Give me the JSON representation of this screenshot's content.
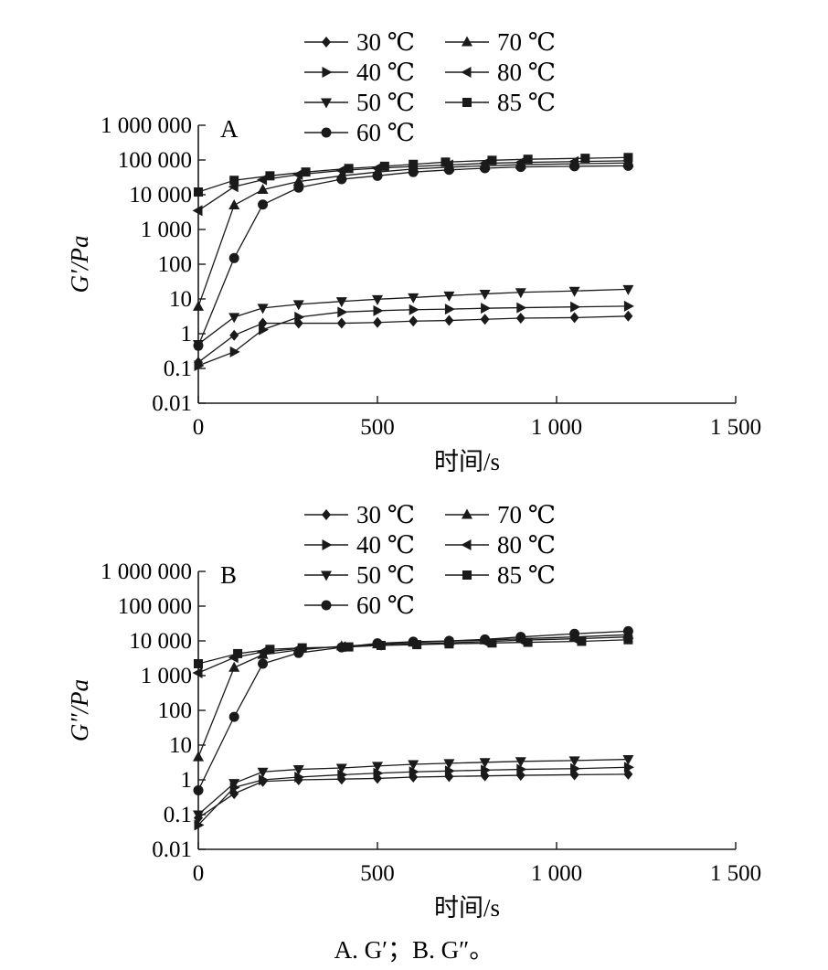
{
  "caption": "A. G′；B. G″。",
  "chart_data": [
    {
      "panel": "A",
      "type": "line",
      "ylabel": "G′/Pa",
      "xlabel": "时间/s",
      "y_scale": "log",
      "xlim": [
        0,
        1500
      ],
      "ylim": [
        0.01,
        1000000
      ],
      "x_ticks": [
        "0",
        "500",
        "1 000",
        "1 500"
      ],
      "y_ticks": [
        "0.01",
        "0.1",
        "1",
        "10",
        "100",
        "1 000",
        "10 000",
        "100 000",
        "1 000 000"
      ],
      "legend_position": "top-center",
      "series": [
        {
          "name": "30 ℃",
          "marker": "diamond",
          "x": [
            0,
            100,
            180,
            280,
            400,
            500,
            600,
            700,
            800,
            900,
            1050,
            1200
          ],
          "y": [
            0.15,
            0.9,
            2.0,
            2.0,
            2.0,
            2.1,
            2.3,
            2.4,
            2.6,
            2.8,
            2.9,
            3.2
          ]
        },
        {
          "name": "40 ℃",
          "marker": "triangle-right",
          "x": [
            0,
            100,
            180,
            280,
            400,
            500,
            600,
            700,
            800,
            900,
            1050,
            1200
          ],
          "y": [
            0.12,
            0.3,
            1.3,
            3.0,
            4.2,
            4.6,
            4.9,
            5.1,
            5.4,
            5.6,
            5.9,
            6.2
          ]
        },
        {
          "name": "50 ℃",
          "marker": "triangle-down",
          "x": [
            0,
            100,
            180,
            280,
            400,
            500,
            600,
            700,
            800,
            900,
            1050,
            1200
          ],
          "y": [
            0.5,
            3.0,
            5.5,
            7.0,
            8.5,
            9.8,
            11,
            12.5,
            14,
            15.5,
            17,
            19
          ]
        },
        {
          "name": "60 ℃",
          "marker": "circle",
          "x": [
            0,
            100,
            180,
            280,
            400,
            500,
            600,
            700,
            800,
            900,
            1050,
            1200
          ],
          "y": [
            0.45,
            150,
            5200,
            16000,
            28000,
            35000,
            45000,
            52000,
            58000,
            63000,
            66000,
            68000
          ]
        },
        {
          "name": "70 ℃",
          "marker": "triangle-up",
          "x": [
            0,
            100,
            180,
            280,
            400,
            500,
            600,
            700,
            800,
            900,
            1050,
            1200
          ],
          "y": [
            6.0,
            5000,
            14000,
            24000,
            35000,
            45000,
            55000,
            62000,
            68000,
            73000,
            78000,
            82000
          ]
        },
        {
          "name": "80 ℃",
          "marker": "triangle-left",
          "x": [
            0,
            100,
            180,
            280,
            400,
            500,
            600,
            700,
            800,
            900,
            1050,
            1200
          ],
          "y": [
            3500,
            17000,
            27000,
            38000,
            50000,
            58000,
            65000,
            72000,
            80000,
            85000,
            90000,
            95000
          ]
        },
        {
          "name": "85 ℃",
          "marker": "square",
          "x": [
            0,
            100,
            200,
            300,
            420,
            520,
            600,
            690,
            820,
            920,
            1080,
            1200
          ],
          "y": [
            12000,
            26000,
            35000,
            45000,
            57000,
            66000,
            75000,
            87000,
            98000,
            105000,
            112000,
            118000
          ]
        }
      ]
    },
    {
      "panel": "B",
      "type": "line",
      "ylabel": "G″/Pa",
      "xlabel": "时间/s",
      "y_scale": "log",
      "xlim": [
        0,
        1500
      ],
      "ylim": [
        0.01,
        1000000
      ],
      "x_ticks": [
        "0",
        "500",
        "1 000",
        "1 500"
      ],
      "y_ticks": [
        "0.01",
        "0.1",
        "1",
        "10",
        "100",
        "1 000",
        "10 000",
        "100 000",
        "1 000 000"
      ],
      "legend_position": "top-center",
      "series": [
        {
          "name": "30 ℃",
          "marker": "diamond",
          "x": [
            0,
            100,
            180,
            280,
            400,
            500,
            600,
            700,
            800,
            900,
            1050,
            1200
          ],
          "y": [
            0.08,
            0.4,
            0.9,
            1.0,
            1.05,
            1.1,
            1.2,
            1.25,
            1.3,
            1.35,
            1.4,
            1.45
          ]
        },
        {
          "name": "40 ℃",
          "marker": "triangle-right",
          "x": [
            0,
            100,
            180,
            280,
            400,
            500,
            600,
            700,
            800,
            900,
            1050,
            1200
          ],
          "y": [
            0.05,
            0.6,
            1.0,
            1.2,
            1.4,
            1.55,
            1.7,
            1.8,
            1.9,
            2.0,
            2.1,
            2.3
          ]
        },
        {
          "name": "50 ℃",
          "marker": "triangle-down",
          "x": [
            0,
            100,
            180,
            280,
            400,
            500,
            600,
            700,
            800,
            900,
            1050,
            1200
          ],
          "y": [
            0.1,
            0.8,
            1.7,
            2.0,
            2.2,
            2.5,
            2.8,
            3.0,
            3.2,
            3.4,
            3.6,
            3.9
          ]
        },
        {
          "name": "60 ℃",
          "marker": "circle",
          "x": [
            0,
            100,
            180,
            280,
            400,
            500,
            600,
            700,
            800,
            900,
            1050,
            1200
          ],
          "y": [
            0.5,
            65,
            2200,
            4500,
            6500,
            8500,
            9500,
            10000,
            11000,
            13000,
            16000,
            19000
          ]
        },
        {
          "name": "70 ℃",
          "marker": "triangle-up",
          "x": [
            0,
            100,
            180,
            280,
            400,
            500,
            600,
            700,
            800,
            900,
            1050,
            1200
          ],
          "y": [
            4.5,
            1700,
            4000,
            5500,
            7000,
            8000,
            9000,
            9800,
            10500,
            11500,
            13000,
            15000
          ]
        },
        {
          "name": "80 ℃",
          "marker": "triangle-left",
          "x": [
            0,
            100,
            180,
            280,
            400,
            500,
            600,
            700,
            800,
            900,
            1050,
            1200
          ],
          "y": [
            1200,
            3300,
            4800,
            6000,
            6800,
            7500,
            8200,
            8800,
            9500,
            10500,
            11500,
            13000
          ]
        },
        {
          "name": "85 ℃",
          "marker": "square",
          "x": [
            0,
            110,
            200,
            290,
            420,
            510,
            610,
            700,
            820,
            920,
            1070,
            1200
          ],
          "y": [
            2200,
            4300,
            5700,
            6300,
            6700,
            7400,
            7800,
            8200,
            8700,
            9100,
            9700,
            10800
          ]
        }
      ]
    }
  ]
}
